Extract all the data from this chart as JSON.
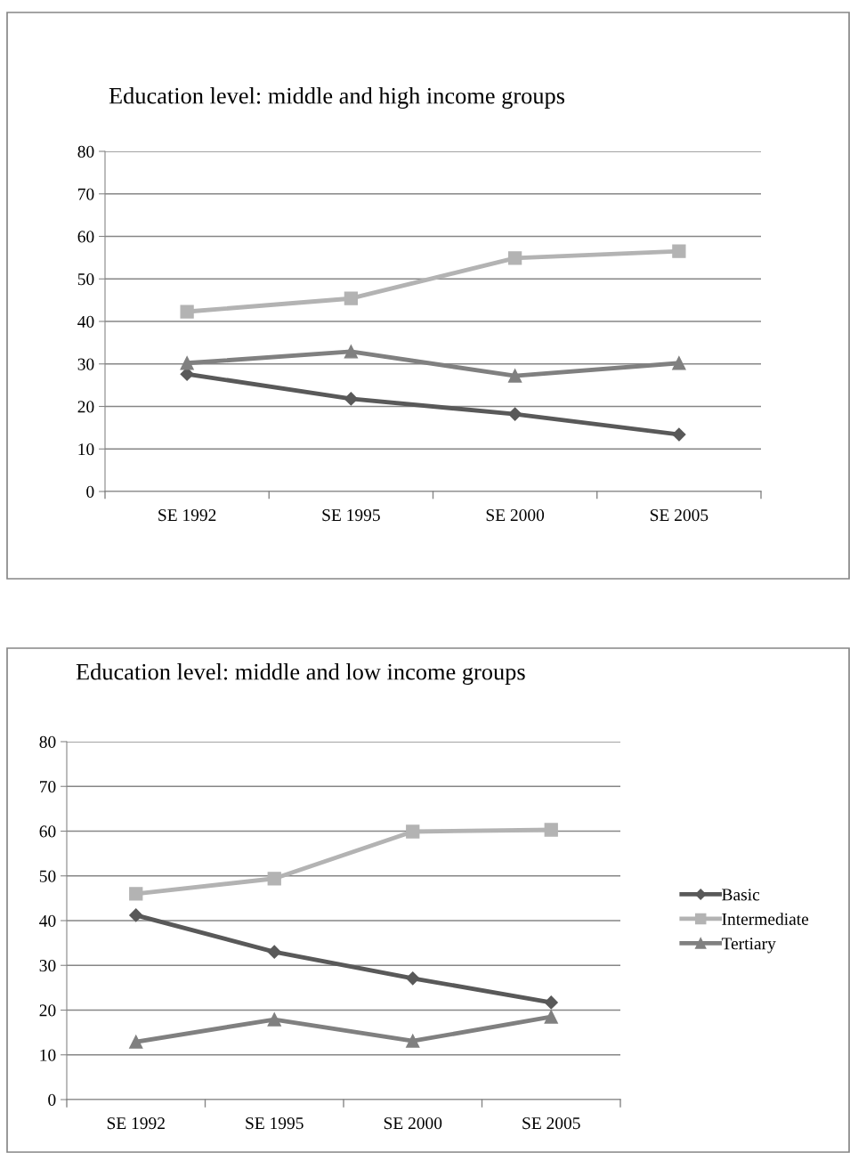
{
  "chart_data": [
    {
      "type": "line",
      "title": "Education level: middle and high income groups",
      "categories": [
        "SE 1992",
        "SE 1995",
        "SE 2000",
        "SE 2005"
      ],
      "ylim": [
        0,
        80
      ],
      "yticks": [
        0,
        10,
        20,
        30,
        40,
        50,
        60,
        70,
        80
      ],
      "grid": "y",
      "series": [
        {
          "color": "#595959",
          "marker": "diamond",
          "values": [
            27.6,
            21.8,
            18.2,
            13.4
          ]
        },
        {
          "color": "#b3b3b3",
          "marker": "square",
          "values": [
            42.3,
            45.4,
            54.9,
            56.5
          ]
        },
        {
          "color": "#808080",
          "marker": "triangle",
          "values": [
            30.2,
            32.9,
            27.2,
            30.2
          ]
        }
      ]
    },
    {
      "type": "line",
      "title": "Education level: middle and low income groups",
      "categories": [
        "SE 1992",
        "SE 1995",
        "SE 2000",
        "SE 2005"
      ],
      "ylim": [
        0,
        80
      ],
      "yticks": [
        0,
        10,
        20,
        30,
        40,
        50,
        60,
        70,
        80
      ],
      "grid": "y",
      "legend": "right",
      "series": [
        {
          "name": "Basic",
          "color": "#595959",
          "marker": "diamond",
          "values": [
            41.2,
            33.0,
            27.1,
            21.7
          ]
        },
        {
          "name": "Intermediate",
          "color": "#b3b3b3",
          "marker": "square",
          "values": [
            46.0,
            49.4,
            59.9,
            60.3
          ]
        },
        {
          "name": "Tertiary",
          "color": "#808080",
          "marker": "triangle",
          "values": [
            12.9,
            17.9,
            13.1,
            18.5
          ]
        }
      ]
    }
  ]
}
